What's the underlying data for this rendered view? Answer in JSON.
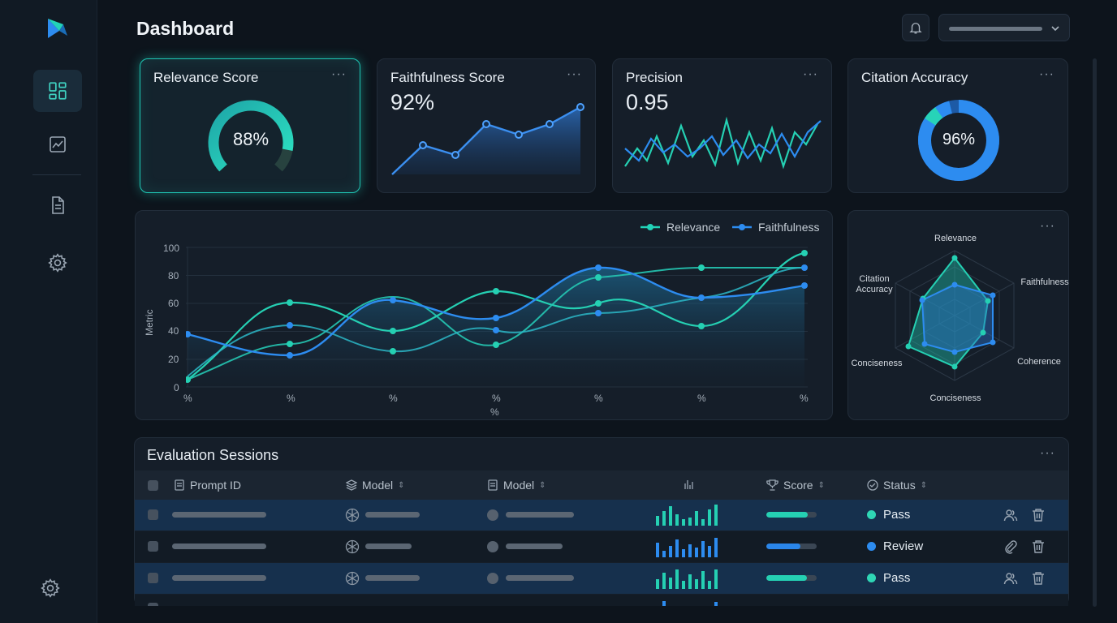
{
  "header": {
    "title": "Dashboard"
  },
  "sidebar": {
    "items": [
      {
        "icon": "dashboard-icon",
        "active": true
      },
      {
        "icon": "chart-icon",
        "active": false
      },
      {
        "icon": "document-icon",
        "active": false
      },
      {
        "icon": "gear-icon",
        "active": false
      }
    ],
    "bottom_icon": "gear-icon"
  },
  "cards": {
    "relevance": {
      "title": "Relevance Score",
      "value": "88%",
      "fraction": 0.88
    },
    "faithfulness": {
      "title": "Faithfulness Score",
      "value": "92%"
    },
    "precision": {
      "title": "Precision",
      "value": "0.95"
    },
    "citation": {
      "title": "Citation Accuracy",
      "value": "96%",
      "fraction": 0.96
    },
    "more_label": "···"
  },
  "main_chart": {
    "legend": [
      "Relevance",
      "Faithfulness"
    ],
    "ylabel": "Metric",
    "yticks": [
      "100",
      "80",
      "60",
      "40",
      "20",
      "0"
    ],
    "xtick": "%",
    "xlabel": "%"
  },
  "radar": {
    "labels": [
      "Relevance",
      "Faithfulness",
      "Coherence",
      "Conciseness",
      "Conciseness",
      "Citation Accuracy"
    ]
  },
  "table": {
    "title": "Evaluation Sessions",
    "columns": [
      "Prompt ID",
      "Model",
      "Model",
      "Score",
      "Status"
    ],
    "rows": [
      {
        "status": "Pass",
        "status_color": "#2fd6b5",
        "score": 0.82,
        "score_color": "#25d0b3",
        "actions": [
          "users-icon",
          "trash-icon"
        ]
      },
      {
        "status": "Review",
        "status_color": "#2d8cf0",
        "score": 0.68,
        "score_color": "#2a86ea",
        "actions": [
          "paperclip-icon",
          "trash-icon"
        ]
      },
      {
        "status": "Pass",
        "status_color": "#2fd6b5",
        "score": 0.8,
        "score_color": "#25d0b3",
        "actions": [
          "users-icon",
          "trash-icon"
        ]
      }
    ]
  },
  "colors": {
    "teal": "#22d3b8",
    "blue": "#2d8cf0",
    "bg": "#0d141c"
  }
}
